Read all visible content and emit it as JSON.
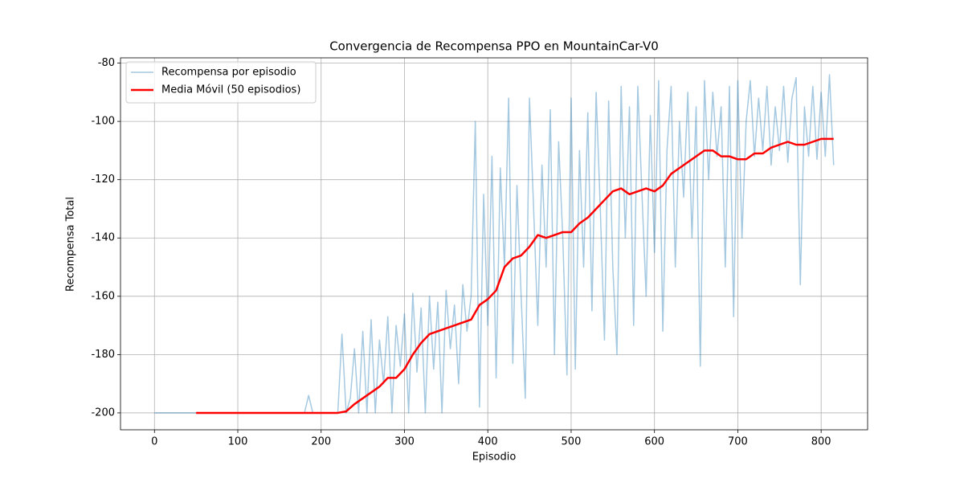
{
  "chart_data": {
    "type": "line",
    "title": "Convergencia de Recompensa PPO en MountainCar-V0",
    "x_label": "Episodio",
    "y_label": "Recompensa Total",
    "xlim": [
      -40.75,
      855.75
    ],
    "ylim": [
      -205.8,
      -78.2
    ],
    "xticks": [
      0,
      100,
      200,
      300,
      400,
      500,
      600,
      700,
      800
    ],
    "yticks": [
      -200,
      -180,
      -160,
      -140,
      -120,
      -100,
      -80
    ],
    "grid": true,
    "legend": "upper left",
    "series": [
      {
        "name": "Recompensa por episodio",
        "color": "#1f77b4",
        "opacity": 0.4,
        "line_width": 1.5,
        "x": [
          0,
          5,
          10,
          15,
          20,
          25,
          30,
          35,
          40,
          45,
          50,
          55,
          60,
          65,
          70,
          75,
          80,
          85,
          90,
          95,
          100,
          105,
          110,
          115,
          120,
          125,
          130,
          135,
          140,
          145,
          150,
          155,
          160,
          165,
          170,
          175,
          180,
          185,
          190,
          195,
          200,
          205,
          210,
          215,
          220,
          225,
          230,
          235,
          240,
          245,
          250,
          255,
          260,
          265,
          270,
          275,
          280,
          285,
          290,
          295,
          300,
          305,
          310,
          315,
          320,
          325,
          330,
          335,
          340,
          345,
          350,
          355,
          360,
          365,
          370,
          375,
          380,
          385,
          390,
          395,
          400,
          405,
          410,
          415,
          420,
          425,
          430,
          435,
          440,
          445,
          450,
          455,
          460,
          465,
          470,
          475,
          480,
          485,
          490,
          495,
          500,
          505,
          510,
          515,
          520,
          525,
          530,
          535,
          540,
          545,
          550,
          555,
          560,
          565,
          570,
          575,
          580,
          585,
          590,
          595,
          600,
          605,
          610,
          615,
          620,
          625,
          630,
          635,
          640,
          645,
          650,
          655,
          660,
          665,
          670,
          675,
          680,
          685,
          690,
          695,
          700,
          705,
          710,
          715,
          720,
          725,
          730,
          735,
          740,
          745,
          750,
          755,
          760,
          765,
          770,
          775,
          780,
          785,
          790,
          795,
          800,
          805,
          810,
          815
        ],
        "values": [
          -200,
          -200,
          -200,
          -200,
          -200,
          -200,
          -200,
          -200,
          -200,
          -200,
          -200,
          -200,
          -200,
          -200,
          -200,
          -200,
          -200,
          -200,
          -200,
          -200,
          -200,
          -200,
          -200,
          -200,
          -200,
          -200,
          -200,
          -200,
          -200,
          -200,
          -200,
          -200,
          -200,
          -200,
          -200,
          -200,
          -200,
          -194,
          -200,
          -200,
          -200,
          -200,
          -200,
          -200,
          -200,
          -173,
          -200,
          -195,
          -178,
          -200,
          -172,
          -200,
          -168,
          -200,
          -175,
          -190,
          -167,
          -200,
          -170,
          -184,
          -166,
          -200,
          -159,
          -186,
          -164,
          -200,
          -160,
          -185,
          -162,
          -200,
          -158,
          -178,
          -163,
          -190,
          -156,
          -172,
          -160,
          -100,
          -198,
          -125,
          -170,
          -112,
          -188,
          -116,
          -150,
          -92,
          -183,
          -122,
          -160,
          -195,
          -92,
          -130,
          -170,
          -115,
          -150,
          -96,
          -180,
          -107,
          -140,
          -187,
          -92,
          -185,
          -110,
          -150,
          -97,
          -165,
          -90,
          -130,
          -175,
          -93,
          -150,
          -180,
          -88,
          -140,
          -95,
          -170,
          -88,
          -125,
          -160,
          -98,
          -145,
          -86,
          -172,
          -110,
          -88,
          -150,
          -100,
          -126,
          -90,
          -140,
          -95,
          -184,
          -86,
          -120,
          -90,
          -112,
          -95,
          -150,
          -88,
          -167,
          -86,
          -140,
          -100,
          -86,
          -112,
          -92,
          -110,
          -88,
          -115,
          -95,
          -110,
          -88,
          -114,
          -92,
          -85,
          -156,
          -95,
          -112,
          -88,
          -113,
          -90,
          -112,
          -84,
          -115
        ]
      },
      {
        "name": "Media Móvil (50 episodios)",
        "color": "#ff0000",
        "opacity": 1,
        "line_width": 2.5,
        "x": [
          50,
          60,
          70,
          80,
          90,
          100,
          110,
          120,
          130,
          140,
          150,
          160,
          170,
          180,
          190,
          200,
          210,
          220,
          230,
          240,
          250,
          260,
          270,
          280,
          290,
          300,
          310,
          320,
          330,
          340,
          350,
          360,
          370,
          380,
          390,
          400,
          410,
          420,
          430,
          440,
          450,
          460,
          470,
          480,
          490,
          500,
          510,
          520,
          530,
          540,
          550,
          560,
          570,
          580,
          590,
          600,
          610,
          620,
          630,
          640,
          650,
          660,
          670,
          680,
          690,
          700,
          710,
          720,
          730,
          740,
          750,
          760,
          770,
          780,
          790,
          800,
          810,
          815
        ],
        "values": [
          -200,
          -200,
          -200,
          -200,
          -200,
          -200,
          -200,
          -200,
          -200,
          -200,
          -200,
          -200,
          -200,
          -200,
          -200,
          -200,
          -200,
          -200,
          -199.5,
          -197,
          -195,
          -193,
          -191,
          -188,
          -188,
          -185,
          -180,
          -176,
          -173,
          -172,
          -171,
          -170,
          -169,
          -168,
          -163,
          -161,
          -158,
          -150,
          -147,
          -146,
          -143,
          -139,
          -140,
          -139,
          -138,
          -138,
          -135,
          -133,
          -130,
          -127,
          -124,
          -123,
          -125,
          -124,
          -123,
          -124,
          -122,
          -118,
          -116,
          -114,
          -112,
          -110,
          -110,
          -112,
          -112,
          -113,
          -113,
          -111,
          -111,
          -109,
          -108,
          -107,
          -108,
          -108,
          -107,
          -106,
          -106,
          -106
        ]
      }
    ]
  }
}
